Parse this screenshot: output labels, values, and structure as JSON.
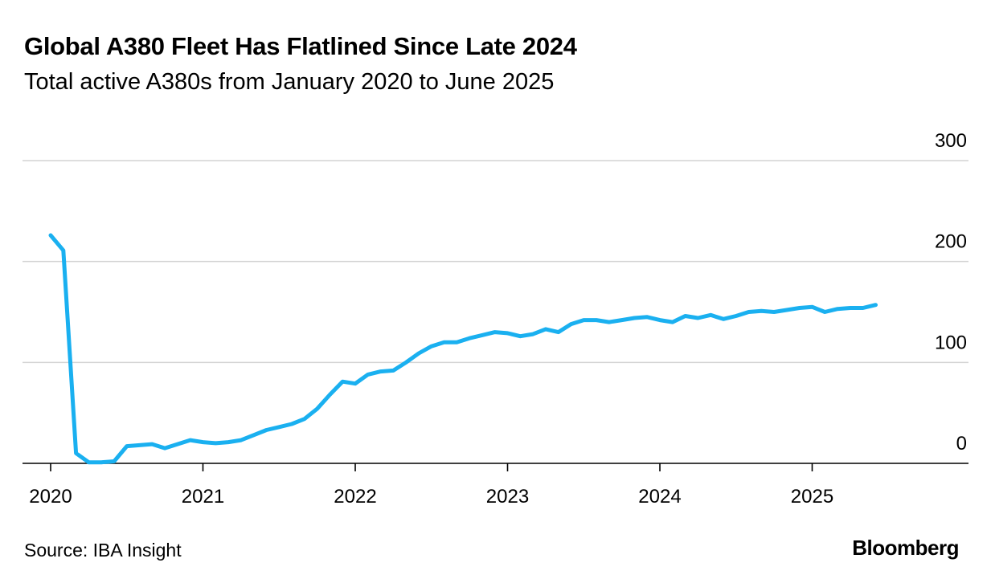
{
  "chart_data": {
    "type": "line",
    "title": "Global A380 Fleet Has Flatlined Since Late 2024",
    "subtitle": "Total active A380s from January 2020 to June 2025",
    "xlabel": "",
    "ylabel": "",
    "x_ticks": [
      "2020",
      "2021",
      "2022",
      "2023",
      "2024",
      "2025"
    ],
    "y_ticks": [
      0,
      100,
      200,
      300
    ],
    "ylim": [
      0,
      300
    ],
    "x_range": [
      "2020-01",
      "2025-12"
    ],
    "grid": true,
    "y_axis_position": "right",
    "series": [
      {
        "color": "#1ab0f0",
        "x": [
          "2020-01",
          "2020-02",
          "2020-03",
          "2020-04",
          "2020-05",
          "2020-06",
          "2020-07",
          "2020-08",
          "2020-09",
          "2020-10",
          "2020-11",
          "2020-12",
          "2021-01",
          "2021-02",
          "2021-03",
          "2021-04",
          "2021-05",
          "2021-06",
          "2021-07",
          "2021-08",
          "2021-09",
          "2021-10",
          "2021-11",
          "2021-12",
          "2022-01",
          "2022-02",
          "2022-03",
          "2022-04",
          "2022-05",
          "2022-06",
          "2022-07",
          "2022-08",
          "2022-09",
          "2022-10",
          "2022-11",
          "2022-12",
          "2023-01",
          "2023-02",
          "2023-03",
          "2023-04",
          "2023-05",
          "2023-06",
          "2023-07",
          "2023-08",
          "2023-09",
          "2023-10",
          "2023-11",
          "2023-12",
          "2024-01",
          "2024-02",
          "2024-03",
          "2024-04",
          "2024-05",
          "2024-06",
          "2024-07",
          "2024-08",
          "2024-09",
          "2024-10",
          "2024-11",
          "2024-12",
          "2025-01",
          "2025-02",
          "2025-03",
          "2025-04",
          "2025-05",
          "2025-06"
        ],
        "values": [
          226,
          211,
          10,
          1,
          1,
          2,
          17,
          18,
          19,
          15,
          19,
          23,
          21,
          20,
          21,
          23,
          28,
          33,
          36,
          39,
          44,
          54,
          68,
          81,
          79,
          88,
          91,
          92,
          100,
          109,
          116,
          120,
          120,
          124,
          127,
          130,
          129,
          126,
          128,
          133,
          130,
          138,
          142,
          142,
          140,
          142,
          144,
          145,
          142,
          140,
          146,
          144,
          147,
          143,
          146,
          150,
          151,
          150,
          152,
          154,
          155,
          150,
          153,
          154,
          154,
          157
        ]
      }
    ]
  },
  "source": "Source: IBA Insight",
  "brand": "Bloomberg"
}
